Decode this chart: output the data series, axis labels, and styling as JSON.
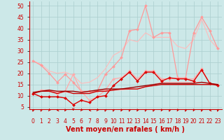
{
  "background_color": "#cce8e8",
  "grid_color": "#aacece",
  "xlabel": "Vent moyen/en rafales ( km/h )",
  "xlabel_color": "#cc0000",
  "xlabel_fontsize": 7,
  "tick_color": "#cc0000",
  "tick_fontsize": 5.5,
  "ytick_values": [
    5,
    10,
    15,
    20,
    25,
    30,
    35,
    40,
    45,
    50
  ],
  "xtick_values": [
    0,
    1,
    2,
    3,
    4,
    5,
    6,
    7,
    8,
    9,
    10,
    11,
    12,
    13,
    14,
    15,
    16,
    17,
    18,
    19,
    20,
    21,
    22,
    23
  ],
  "xlim": [
    -0.5,
    23.5
  ],
  "ylim": [
    4,
    52
  ],
  "x": [
    0,
    1,
    2,
    3,
    4,
    5,
    6,
    7,
    8,
    9,
    10,
    11,
    12,
    13,
    14,
    15,
    16,
    17,
    18,
    19,
    20,
    21,
    22,
    23
  ],
  "series": [
    {
      "name": "upper_envelope_light",
      "color": "#ffbbbb",
      "linewidth": 0.8,
      "marker": null,
      "y": [
        25.5,
        24,
        21,
        20,
        20.5,
        19,
        15.5,
        16,
        18,
        22,
        28,
        30,
        35,
        34,
        38,
        36,
        36,
        36,
        32,
        31,
        35,
        44,
        35,
        31
      ]
    },
    {
      "name": "lower_envelope_light",
      "color": "#ffbbbb",
      "linewidth": 0.8,
      "marker": null,
      "y": [
        11.5,
        12.5,
        12.5,
        11.5,
        12,
        12,
        11.5,
        11.5,
        12.5,
        12.5,
        12.5,
        12.5,
        13,
        13,
        14,
        15,
        16,
        16,
        16,
        16,
        16,
        16,
        15,
        15
      ]
    },
    {
      "name": "top_line_pink",
      "color": "#ff9999",
      "linewidth": 0.9,
      "marker": "D",
      "markersize": 2.0,
      "y": [
        25.5,
        23.5,
        20,
        16,
        19.5,
        16,
        12,
        12,
        12,
        19.5,
        23,
        27,
        39,
        39.5,
        50,
        36,
        38,
        38,
        18,
        18,
        38,
        45,
        39,
        31
      ]
    },
    {
      "name": "mid_line_pink",
      "color": "#ffaaaa",
      "linewidth": 0.9,
      "marker": "D",
      "markersize": 2.0,
      "y": [
        11,
        12.5,
        12.5,
        11,
        12,
        19.5,
        12,
        8,
        9.5,
        12.5,
        17.5,
        18,
        21,
        17.5,
        21,
        21,
        17.5,
        17.5,
        18,
        17.5,
        17.5,
        22,
        15.5,
        15
      ]
    },
    {
      "name": "red_upper",
      "color": "#dd0000",
      "linewidth": 1.0,
      "marker": "D",
      "markersize": 2.0,
      "y": [
        11,
        9.5,
        9.5,
        9.5,
        9,
        6,
        8,
        7,
        9.5,
        10,
        14.5,
        17.5,
        20.5,
        16.5,
        20.5,
        20.5,
        16.5,
        18,
        17.5,
        17.5,
        16.5,
        21.5,
        15.5,
        14.5
      ]
    },
    {
      "name": "red_flat_lower",
      "color": "#cc0000",
      "linewidth": 1.0,
      "marker": null,
      "y": [
        11,
        12,
        12,
        11,
        12,
        11,
        11,
        11,
        12,
        12,
        12.5,
        13,
        13,
        13,
        14,
        14.5,
        15,
        15,
        15,
        15,
        15,
        15,
        15,
        15
      ]
    },
    {
      "name": "darkred_trend",
      "color": "#990000",
      "linewidth": 1.0,
      "marker": null,
      "y": [
        11.5,
        12,
        12.5,
        12,
        12,
        12,
        11.5,
        12,
        12.5,
        13,
        13,
        13,
        13.5,
        14,
        14.5,
        15,
        15.5,
        15.5,
        15.5,
        15.5,
        15.5,
        16,
        15.5,
        15
      ]
    }
  ],
  "arrow_color": "#cc0000",
  "arrow_angles": [
    225,
    225,
    200,
    180,
    210,
    270,
    200,
    180,
    200,
    225,
    225,
    210,
    225,
    210,
    225,
    225,
    210,
    225,
    210,
    225,
    210,
    225,
    180,
    225
  ]
}
